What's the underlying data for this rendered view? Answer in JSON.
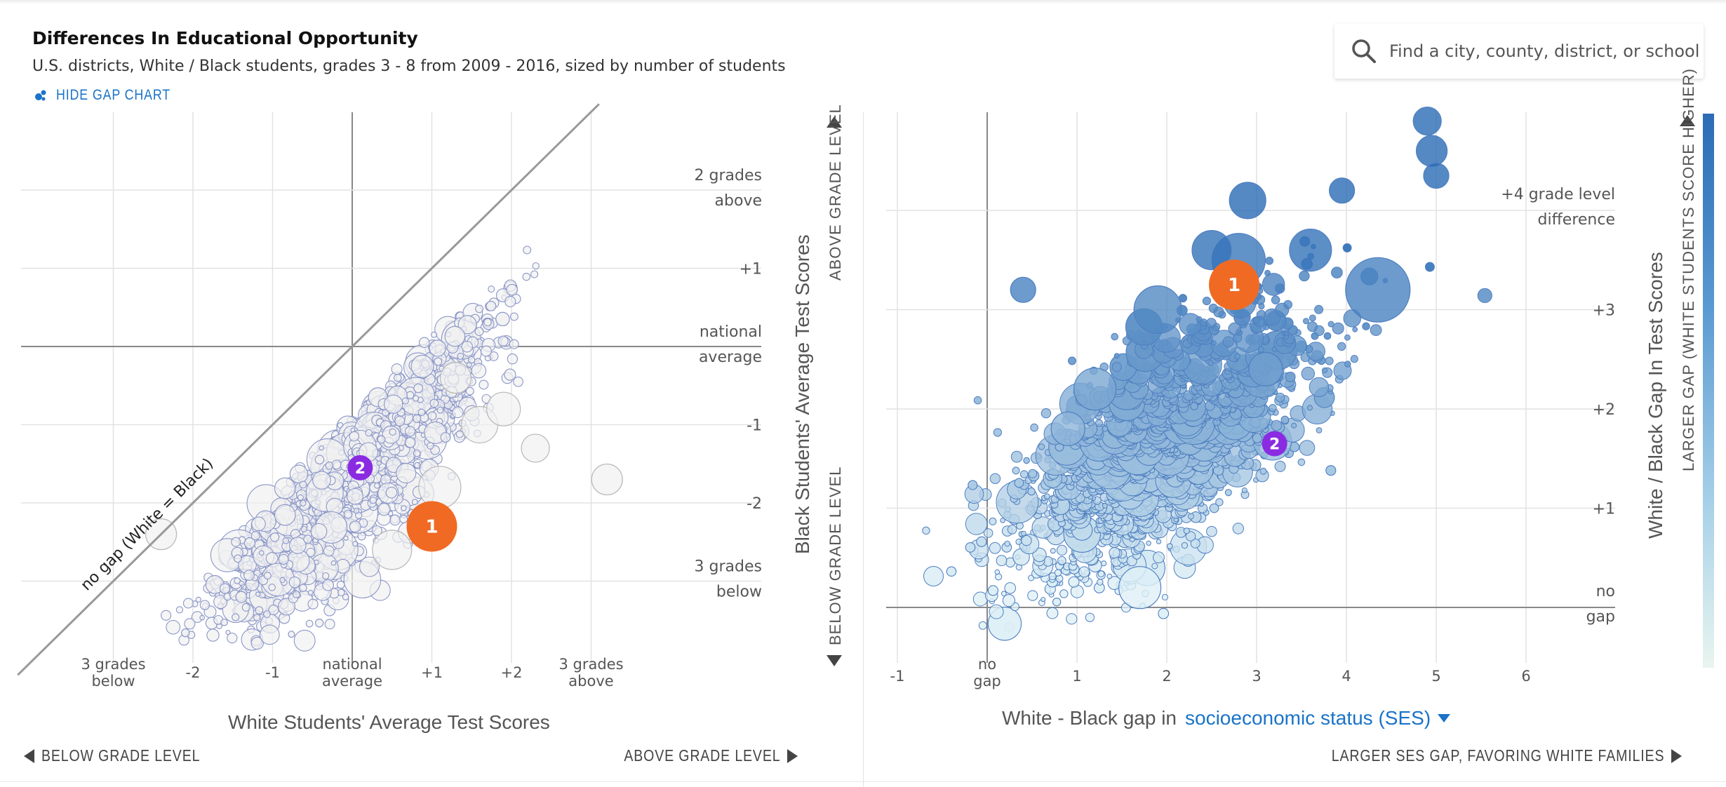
{
  "header": {
    "title": "Differences In Educational Opportunity",
    "subtitle": "U.S. districts, White / Black students, grades 3 - 8 from 2009 - 2016, sized by number of students",
    "gap_toggle_label": "HIDE GAP CHART"
  },
  "search": {
    "placeholder": "Find a city, county, district, or school"
  },
  "colors": {
    "accent": "#1a73c8",
    "marker_orange": "#f06a24",
    "marker_purple": "#8a2be2",
    "bubble_left_fill": "#f1f1f1",
    "bubble_left_stroke": "#8b96c8",
    "bubble_right_dark": "#2b6cb5",
    "bubble_right_light": "#d6ecf4",
    "bubble_right_stroke": "#4f7fc0"
  },
  "left_chart": {
    "x_axis_title": "White Students' Average Test Scores",
    "y_axis_title": "Black Students' Average Test Scores",
    "y_above_label": "ABOVE GRADE LEVEL",
    "y_below_label": "BELOW GRADE LEVEL",
    "x_below_nav": "BELOW GRADE LEVEL",
    "x_above_nav": "ABOVE GRADE LEVEL",
    "diagonal_label": "no gap (White = Black)"
  },
  "right_chart": {
    "x_axis_prefix": "White - Black gap in",
    "x_metric_selector": "socioeconomic status (SES)",
    "y_axis_title": "White / Black Gap In Test Scores",
    "legend_label": "LARGER GAP (WHITE STUDENTS SCORE HIGHER)",
    "x_nav": "LARGER SES GAP, FAVORING WHITE FAMILIES"
  },
  "chart_data": [
    {
      "type": "scatter",
      "xlabel": "White Students' Average Test Scores",
      "ylabel": "Black Students' Average Test Scores",
      "xlim": [
        -3.0,
        3.5
      ],
      "ylim": [
        -4.0,
        3.0
      ],
      "x_ticks": [
        {
          "value": -3,
          "label": [
            "3 grades",
            "below"
          ]
        },
        {
          "value": -2,
          "label": [
            "-2"
          ]
        },
        {
          "value": -1,
          "label": [
            "-1"
          ]
        },
        {
          "value": 0,
          "label": [
            "national",
            "average"
          ]
        },
        {
          "value": 1,
          "label": [
            "+1"
          ]
        },
        {
          "value": 2,
          "label": [
            "+2"
          ]
        },
        {
          "value": 3,
          "label": [
            "3 grades",
            "above"
          ]
        }
      ],
      "y_ticks": [
        {
          "value": 2,
          "label": [
            "2 grades",
            "above"
          ]
        },
        {
          "value": 1,
          "label": [
            "+1"
          ]
        },
        {
          "value": 0,
          "label": [
            "national",
            "average"
          ]
        },
        {
          "value": -1,
          "label": [
            "-1"
          ]
        },
        {
          "value": -2,
          "label": [
            "-2"
          ]
        },
        {
          "value": -3,
          "label": [
            "3 grades",
            "below"
          ]
        }
      ],
      "reference_line": {
        "label": "no gap (White = Black)",
        "slope": 1,
        "intercept": 0
      },
      "highlighted_points": [
        {
          "label": "1",
          "x": 1.0,
          "y": -2.3,
          "color": "orange"
        },
        {
          "label": "2",
          "x": 0.1,
          "y": -1.55,
          "color": "purple"
        }
      ],
      "note": "thousands of district bubbles sized by number of students, concentrated below the no-gap diagonal"
    },
    {
      "type": "scatter",
      "xlabel": "White - Black gap in socioeconomic status (SES)",
      "ylabel": "White / Black Gap In Test Scores",
      "xlim": [
        -1.0,
        6.5
      ],
      "ylim": [
        -0.3,
        5.2
      ],
      "x_ticks": [
        {
          "value": -1,
          "label": [
            "-1"
          ]
        },
        {
          "value": 0,
          "label": [
            "no",
            "gap"
          ]
        },
        {
          "value": 1,
          "label": [
            "1"
          ]
        },
        {
          "value": 2,
          "label": [
            "2"
          ]
        },
        {
          "value": 3,
          "label": [
            "3"
          ]
        },
        {
          "value": 4,
          "label": [
            "4"
          ]
        },
        {
          "value": 5,
          "label": [
            "5"
          ]
        },
        {
          "value": 6,
          "label": [
            "6"
          ]
        }
      ],
      "y_ticks": [
        {
          "value": 4,
          "label": [
            "+4 grade level",
            "difference"
          ]
        },
        {
          "value": 3,
          "label": [
            "+3"
          ]
        },
        {
          "value": 2,
          "label": [
            "+2"
          ]
        },
        {
          "value": 1,
          "label": [
            "+1"
          ]
        },
        {
          "value": 0,
          "label": [
            "no",
            "gap"
          ]
        }
      ],
      "highlighted_points": [
        {
          "label": "1",
          "x": 2.75,
          "y": 3.25,
          "color": "orange"
        },
        {
          "label": "2",
          "x": 3.2,
          "y": 1.65,
          "color": "purple"
        }
      ],
      "color_scale": "larger gap = darker blue",
      "note": "thousands of district bubbles sized by number of students"
    }
  ]
}
